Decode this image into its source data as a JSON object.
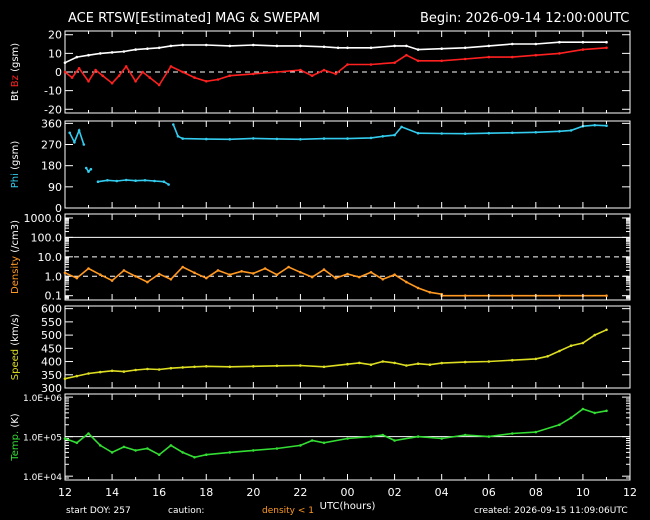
{
  "header": {
    "title": "ACE RTSW[Estimated] MAG & SWEPAM",
    "begin": "Begin: 2026-09-14 12:00:00UTC"
  },
  "footer": {
    "start": "start DOY: 257",
    "caution": "caution:",
    "density_note": "density < 1",
    "created": "created: 2026-09-15 11:09:06UTC"
  },
  "colors": {
    "bg": "#000000",
    "axis": "#ffffff",
    "bt": "#ffffff",
    "bz": "#ff2020",
    "phi": "#33ccee",
    "density": "#ff9922",
    "speed": "#dddd22",
    "temp": "#33dd33"
  },
  "chart_data": {
    "type": "line",
    "x_axis": {
      "label": "UTC(hours)",
      "ticks": [
        "12",
        "14",
        "16",
        "18",
        "20",
        "22",
        "00",
        "02",
        "04",
        "06",
        "08",
        "10",
        "12"
      ],
      "range_hours": [
        12,
        36
      ]
    },
    "panels": [
      {
        "name": "bz_bt",
        "ylabel_parts": [
          {
            "text": "Bt",
            "color": "#ffffff"
          },
          {
            "text": "Bz",
            "color": "#ff2020"
          },
          {
            "text": "(gsm)",
            "color": "#ffffff"
          }
        ],
        "ylim": [
          -22,
          22
        ],
        "yticks": [
          -20,
          -10,
          0,
          10,
          20
        ],
        "ytick_labels": [
          "-20",
          "-10",
          "0",
          "10",
          "20"
        ],
        "dashed_lines": [
          0
        ],
        "series": [
          {
            "name": "Bt",
            "color": "#ffffff",
            "x": [
              12.0,
              12.5,
              13.0,
              13.5,
              14.0,
              14.5,
              15.0,
              15.5,
              16.0,
              16.5,
              17.0,
              18.0,
              19.0,
              20.0,
              21.0,
              22.0,
              23.0,
              23.6,
              24.0,
              25.0,
              26.0,
              26.5,
              27.0,
              28.0,
              29.0,
              30.0,
              31.0,
              32.0,
              33.0,
              34.0,
              35.0
            ],
            "y": [
              5,
              8,
              9,
              10,
              10.5,
              11,
              12,
              12.5,
              13,
              14,
              14.5,
              14.5,
              14,
              14.5,
              14,
              14,
              13.5,
              13,
              13,
              13,
              14,
              14,
              12,
              12.5,
              13,
              14,
              15,
              15,
              16,
              16,
              16
            ]
          },
          {
            "name": "Bz",
            "color": "#ff2020",
            "x": [
              12.0,
              12.3,
              12.6,
              13.0,
              13.3,
              13.6,
              14.0,
              14.3,
              14.6,
              15.0,
              15.3,
              15.6,
              16.0,
              16.5,
              17.0,
              17.5,
              18.0,
              18.5,
              19.0,
              20.0,
              21.0,
              22.0,
              22.5,
              23.0,
              23.5,
              24.0,
              25.0,
              26.0,
              26.5,
              27.0,
              28.0,
              29.0,
              30.0,
              31.0,
              32.0,
              33.0,
              34.0,
              35.0
            ],
            "y": [
              0,
              -3,
              2,
              -5,
              1,
              -2,
              -6,
              -2,
              3,
              -5,
              0,
              -3,
              -7,
              3,
              0,
              -3,
              -5,
              -4,
              -2,
              -1,
              0,
              1,
              -2,
              1,
              -1,
              4,
              4,
              5,
              9,
              6,
              6,
              7,
              8,
              8,
              9,
              10,
              12,
              13
            ]
          }
        ]
      },
      {
        "name": "phi",
        "ylabel_parts": [
          {
            "text": "Phi",
            "color": "#33ccee"
          },
          {
            "text": "(gsm)",
            "color": "#ffffff"
          }
        ],
        "ylim": [
          0,
          370
        ],
        "yticks": [
          0,
          90,
          180,
          270,
          360
        ],
        "ytick_labels": [
          "0",
          "90",
          "180",
          "270",
          "360"
        ],
        "dashed_lines": [],
        "series": [
          {
            "name": "Phi",
            "color": "#33ccee",
            "segments": [
              {
                "x": [
                  12.2,
                  12.4,
                  12.6,
                  12.8
                ],
                "y": [
                  320,
                  280,
                  330,
                  270
                ]
              },
              {
                "x": [
                  12.9,
                  13.0,
                  13.1
                ],
                "y": [
                  170,
                  155,
                  165
                ]
              },
              {
                "x": [
                  13.4,
                  13.8,
                  14.2,
                  14.6,
                  15.0,
                  15.4,
                  15.8,
                  16.2,
                  16.4
                ],
                "y": [
                  112,
                  118,
                  115,
                  119,
                  116,
                  118,
                  115,
                  112,
                  100
                ]
              },
              {
                "x": [
                  16.6,
                  16.8,
                  17.0,
                  18.0,
                  19.0,
                  20.0,
                  21.0,
                  22.0,
                  23.0,
                  24.0,
                  25.0,
                  25.5,
                  26.0,
                  26.3,
                  27.0,
                  28.0,
                  29.0,
                  30.0,
                  31.0,
                  32.0,
                  33.0,
                  33.5,
                  34.0,
                  34.5,
                  35.0
                ],
                "y": [
                  355,
                  305,
                  295,
                  293,
                  292,
                  296,
                  294,
                  292,
                  295,
                  295,
                  298,
                  305,
                  310,
                  345,
                  318,
                  317,
                  316,
                  318,
                  320,
                  322,
                  326,
                  330,
                  348,
                  352,
                  350
                ]
              }
            ]
          }
        ]
      },
      {
        "name": "density",
        "ylabel_parts": [
          {
            "text": "Density",
            "color": "#ff9922"
          },
          {
            "text": "(/cm3)",
            "color": "#ffffff"
          }
        ],
        "log": true,
        "ylim": [
          0.06,
          1600
        ],
        "yticks": [
          0.1,
          1,
          10,
          100,
          1000
        ],
        "ytick_labels": [
          "0.1",
          "1.0",
          "10.0",
          "100.0",
          "1000.0"
        ],
        "solid_lines": [
          100
        ],
        "dashed_lines": [
          1,
          10
        ],
        "series": [
          {
            "name": "Density",
            "color": "#ff9922",
            "x": [
              12.0,
              12.5,
              13.0,
              13.5,
              14.0,
              14.5,
              15.0,
              15.5,
              16.0,
              16.5,
              17.0,
              17.5,
              18.0,
              18.5,
              19.0,
              19.5,
              20.0,
              20.5,
              21.0,
              21.5,
              22.0,
              22.5,
              23.0,
              23.5,
              24.0,
              24.5,
              25.0,
              25.5,
              26.0,
              26.5,
              27.0,
              27.5,
              28.0
            ],
            "y": [
              1.5,
              0.8,
              2.5,
              1.2,
              0.6,
              2.0,
              1.0,
              0.5,
              1.3,
              0.7,
              3.0,
              1.5,
              0.8,
              2.0,
              1.2,
              1.8,
              1.4,
              2.5,
              1.2,
              3.0,
              1.6,
              0.9,
              2.2,
              0.8,
              1.3,
              0.9,
              1.6,
              0.7,
              1.2,
              0.5,
              0.25,
              0.15,
              0.12
            ]
          },
          {
            "name": "Density",
            "color": "#ff9922",
            "x": [
              28.0,
              29.0,
              30.0,
              31.0,
              32.0,
              33.0,
              34.0,
              35.0
            ],
            "y": [
              0.1,
              0.1,
              0.1,
              0.1,
              0.1,
              0.1,
              0.1,
              0.1
            ]
          }
        ]
      },
      {
        "name": "speed",
        "ylabel_parts": [
          {
            "text": "Speed",
            "color": "#dddd22"
          },
          {
            "text": "(km/s)",
            "color": "#ffffff"
          }
        ],
        "ylim": [
          300,
          610
        ],
        "yticks": [
          300,
          350,
          400,
          450,
          500,
          550,
          600
        ],
        "ytick_labels": [
          "300",
          "350",
          "400",
          "450",
          "500",
          "550",
          "600"
        ],
        "dashed_lines": [],
        "series": [
          {
            "name": "Speed",
            "color": "#dddd22",
            "x": [
              12.0,
              12.5,
              13.0,
              13.5,
              14.0,
              14.5,
              15.0,
              15.5,
              16.0,
              16.5,
              17.0,
              17.5,
              18.0,
              19.0,
              20.0,
              21.0,
              22.0,
              23.0,
              24.0,
              24.5,
              25.0,
              25.5,
              26.0,
              26.5,
              27.0,
              27.5,
              28.0,
              29.0,
              30.0,
              31.0,
              32.0,
              32.5,
              33.0,
              33.5,
              34.0,
              34.5,
              35.0
            ],
            "y": [
              335,
              345,
              355,
              360,
              365,
              362,
              368,
              372,
              370,
              375,
              378,
              380,
              382,
              380,
              382,
              384,
              385,
              380,
              390,
              395,
              388,
              400,
              395,
              385,
              392,
              388,
              394,
              398,
              400,
              405,
              410,
              420,
              440,
              460,
              470,
              500,
              520
            ]
          }
        ]
      },
      {
        "name": "temp",
        "ylabel_parts": [
          {
            "text": "Temp.",
            "color": "#33dd33"
          },
          {
            "text": "(K)",
            "color": "#ffffff"
          }
        ],
        "log": true,
        "ylim": [
          8000,
          1200000
        ],
        "yticks": [
          10000,
          100000,
          1000000
        ],
        "ytick_labels": [
          "1.0E+04",
          "1.0E+05",
          "1.0E+06"
        ],
        "solid_lines": [
          100000
        ],
        "dashed_lines": [],
        "series": [
          {
            "name": "Temp",
            "color": "#33dd33",
            "x": [
              12.0,
              12.5,
              13.0,
              13.5,
              14.0,
              14.5,
              15.0,
              15.5,
              16.0,
              16.5,
              17.0,
              17.5,
              18.0,
              19.0,
              20.0,
              21.0,
              22.0,
              22.5,
              23.0,
              24.0,
              25.0,
              25.5,
              26.0,
              27.0,
              28.0,
              29.0,
              30.0,
              31.0,
              32.0,
              33.0,
              33.5,
              34.0,
              34.5,
              35.0
            ],
            "y": [
              90000,
              70000,
              120000,
              60000,
              40000,
              55000,
              45000,
              50000,
              35000,
              60000,
              40000,
              30000,
              35000,
              40000,
              45000,
              50000,
              60000,
              80000,
              70000,
              90000,
              100000,
              110000,
              80000,
              100000,
              90000,
              110000,
              100000,
              120000,
              130000,
              200000,
              300000,
              500000,
              400000,
              450000
            ]
          }
        ]
      }
    ]
  }
}
